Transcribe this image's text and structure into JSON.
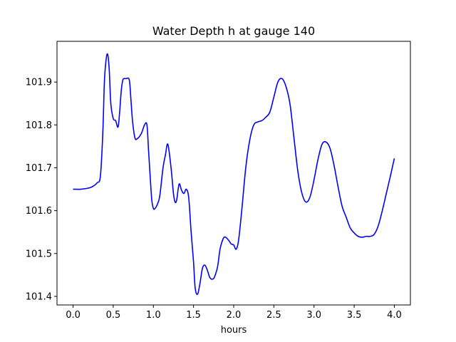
{
  "chart_data": {
    "type": "line",
    "title": "Water Depth h at gauge 140",
    "xlabel": "hours",
    "ylabel": "",
    "xlim": [
      -0.2,
      4.2
    ],
    "ylim": [
      101.38,
      101.995
    ],
    "xticks": [
      0.0,
      0.5,
      1.0,
      1.5,
      2.0,
      2.5,
      3.0,
      3.5,
      4.0
    ],
    "xtick_labels": [
      "0.0",
      "0.5",
      "1.0",
      "1.5",
      "2.0",
      "2.5",
      "3.0",
      "3.5",
      "4.0"
    ],
    "yticks": [
      101.4,
      101.5,
      101.6,
      101.7,
      101.8,
      101.9
    ],
    "ytick_labels": [
      "101.4",
      "101.5",
      "101.6",
      "101.7",
      "101.8",
      "101.9"
    ],
    "grid": false,
    "series": [
      {
        "color": "#0000ff",
        "x": [
          0.0,
          0.1,
          0.2,
          0.25,
          0.3,
          0.34,
          0.37,
          0.39,
          0.41,
          0.43,
          0.45,
          0.47,
          0.5,
          0.53,
          0.56,
          0.58,
          0.6,
          0.62,
          0.64,
          0.66,
          0.7,
          0.72,
          0.74,
          0.77,
          0.8,
          0.85,
          0.89,
          0.92,
          0.94,
          0.96,
          0.98,
          1.0,
          1.02,
          1.05,
          1.08,
          1.12,
          1.15,
          1.18,
          1.22,
          1.25,
          1.27,
          1.29,
          1.32,
          1.35,
          1.38,
          1.41,
          1.44,
          1.47,
          1.5,
          1.52,
          1.55,
          1.58,
          1.61,
          1.64,
          1.67,
          1.7,
          1.73,
          1.76,
          1.8,
          1.83,
          1.87,
          1.9,
          1.94,
          1.97,
          2.0,
          2.03,
          2.06,
          2.1,
          2.15,
          2.2,
          2.25,
          2.3,
          2.35,
          2.4,
          2.45,
          2.5,
          2.55,
          2.6,
          2.65,
          2.7,
          2.75,
          2.8,
          2.85,
          2.9,
          2.95,
          3.0,
          3.05,
          3.1,
          3.15,
          3.2,
          3.25,
          3.3,
          3.35,
          3.4,
          3.45,
          3.5,
          3.55,
          3.6,
          3.65,
          3.7,
          3.75,
          3.8,
          3.85,
          3.9,
          3.95,
          4.0
        ],
        "y": [
          101.65,
          101.65,
          101.653,
          101.657,
          101.665,
          101.68,
          101.78,
          101.9,
          101.95,
          101.965,
          101.93,
          101.85,
          101.815,
          101.81,
          101.795,
          101.83,
          101.88,
          101.905,
          101.908,
          101.908,
          101.905,
          101.86,
          101.81,
          101.77,
          101.768,
          101.78,
          101.8,
          101.8,
          101.74,
          101.68,
          101.625,
          101.605,
          101.605,
          101.615,
          101.635,
          101.7,
          101.73,
          101.755,
          101.7,
          101.64,
          101.62,
          101.625,
          101.662,
          101.648,
          101.64,
          101.65,
          101.63,
          101.55,
          101.48,
          101.42,
          101.405,
          101.43,
          101.465,
          101.473,
          101.462,
          101.445,
          101.44,
          101.445,
          101.47,
          101.51,
          101.535,
          101.538,
          101.53,
          101.522,
          101.52,
          101.51,
          101.53,
          101.6,
          101.7,
          101.765,
          101.8,
          101.807,
          101.81,
          101.818,
          101.83,
          101.865,
          101.9,
          101.908,
          101.89,
          101.85,
          101.77,
          101.69,
          101.64,
          101.62,
          101.632,
          101.672,
          101.72,
          101.755,
          101.76,
          101.745,
          101.705,
          101.655,
          101.61,
          101.585,
          101.56,
          101.548,
          101.54,
          101.538,
          101.54,
          101.54,
          101.545,
          101.565,
          101.6,
          101.64,
          101.68,
          101.722
        ]
      }
    ]
  }
}
